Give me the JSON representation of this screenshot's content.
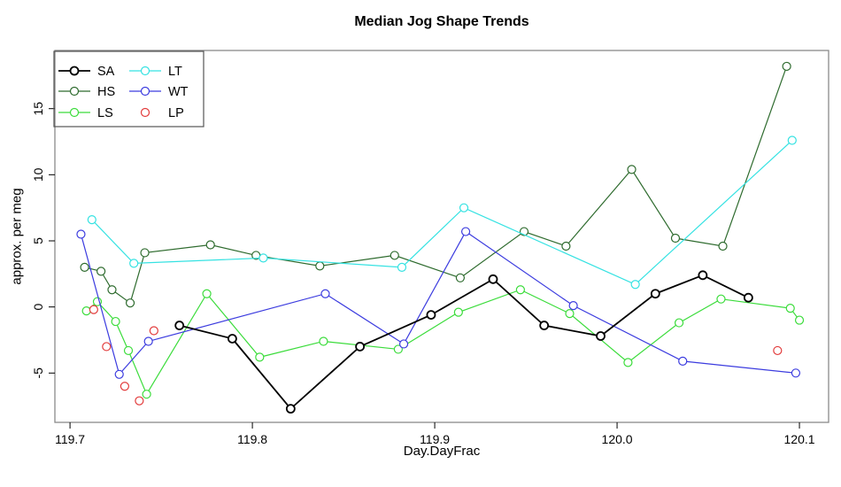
{
  "chart_data": {
    "type": "line",
    "title": "Median Jog Shape Trends",
    "xlabel": "Day.DayFrac",
    "ylabel": "approx. per meg",
    "xlim": [
      119.6917,
      120.116
    ],
    "ylim": [
      -8.73,
      19.4
    ],
    "x_ticks": [
      119.7,
      119.8,
      119.9,
      120.0,
      120.1
    ],
    "x_tick_labels": [
      "119.7",
      "119.8",
      "119.9",
      "120.0",
      "120.1"
    ],
    "y_ticks": [
      -5,
      0,
      5,
      10,
      15
    ],
    "y_tick_labels": [
      "-5",
      "0",
      "5",
      "10",
      "15"
    ],
    "grid": false,
    "legend_position": "topleft",
    "series": [
      {
        "name": "SA",
        "color": "#000000",
        "line": true,
        "line_width": 1.8,
        "points": [
          [
            119.76,
            -1.4
          ],
          [
            119.789,
            -2.4
          ],
          [
            119.821,
            -7.7
          ],
          [
            119.859,
            -3.0
          ],
          [
            119.898,
            -0.6
          ],
          [
            119.932,
            2.1
          ],
          [
            119.96,
            -1.4
          ],
          [
            119.991,
            -2.2
          ],
          [
            120.021,
            1.0
          ],
          [
            120.047,
            2.4
          ],
          [
            120.072,
            0.7
          ]
        ]
      },
      {
        "name": "HS",
        "color": "#2e6b2e",
        "line": true,
        "line_width": 1.2,
        "points": [
          [
            119.708,
            3.0
          ],
          [
            119.717,
            2.7
          ],
          [
            119.723,
            1.3
          ],
          [
            119.733,
            0.3
          ],
          [
            119.741,
            4.1
          ],
          [
            119.777,
            4.7
          ],
          [
            119.802,
            3.9
          ],
          [
            119.837,
            3.1
          ],
          [
            119.878,
            3.9
          ],
          [
            119.914,
            2.2
          ],
          [
            119.949,
            5.7
          ],
          [
            119.972,
            4.6
          ],
          [
            120.008,
            10.4
          ],
          [
            120.032,
            5.2
          ],
          [
            120.058,
            4.6
          ],
          [
            120.093,
            18.2
          ]
        ]
      },
      {
        "name": "LS",
        "color": "#3bdc3b",
        "line": true,
        "line_width": 1.2,
        "points": [
          [
            119.709,
            -0.3
          ],
          [
            119.715,
            0.4
          ],
          [
            119.725,
            -1.1
          ],
          [
            119.732,
            -3.3
          ],
          [
            119.742,
            -6.6
          ],
          [
            119.775,
            1.0
          ],
          [
            119.804,
            -3.8
          ],
          [
            119.839,
            -2.6
          ],
          [
            119.88,
            -3.2
          ],
          [
            119.913,
            -0.4
          ],
          [
            119.947,
            1.3
          ],
          [
            119.974,
            -0.5
          ],
          [
            120.006,
            -4.2
          ],
          [
            120.034,
            -1.2
          ],
          [
            120.057,
            0.6
          ],
          [
            120.095,
            -0.1
          ],
          [
            120.1,
            -1.0
          ]
        ]
      },
      {
        "name": "LT",
        "color": "#35e2e2",
        "line": true,
        "line_width": 1.2,
        "points": [
          [
            119.712,
            6.6
          ],
          [
            119.735,
            3.3
          ],
          [
            119.806,
            3.7
          ],
          [
            119.882,
            3.0
          ],
          [
            119.916,
            7.5
          ],
          [
            120.01,
            1.7
          ],
          [
            120.096,
            12.6
          ]
        ]
      },
      {
        "name": "WT",
        "color": "#3c3cdf",
        "line": true,
        "line_width": 1.2,
        "points": [
          [
            119.706,
            5.5
          ],
          [
            119.727,
            -5.1
          ],
          [
            119.743,
            -2.6
          ],
          [
            119.84,
            1.0
          ],
          [
            119.883,
            -2.8
          ],
          [
            119.917,
            5.7
          ],
          [
            119.976,
            0.1
          ],
          [
            120.036,
            -4.1
          ],
          [
            120.098,
            -5.0
          ]
        ]
      },
      {
        "name": "LP",
        "color": "#e23b3b",
        "line": false,
        "line_width": 1.2,
        "points": [
          [
            119.713,
            -0.2
          ],
          [
            119.72,
            -3.0
          ],
          [
            119.73,
            -6.0
          ],
          [
            119.738,
            -7.1
          ],
          [
            119.746,
            -1.8
          ],
          [
            120.088,
            -3.3
          ]
        ]
      }
    ]
  }
}
